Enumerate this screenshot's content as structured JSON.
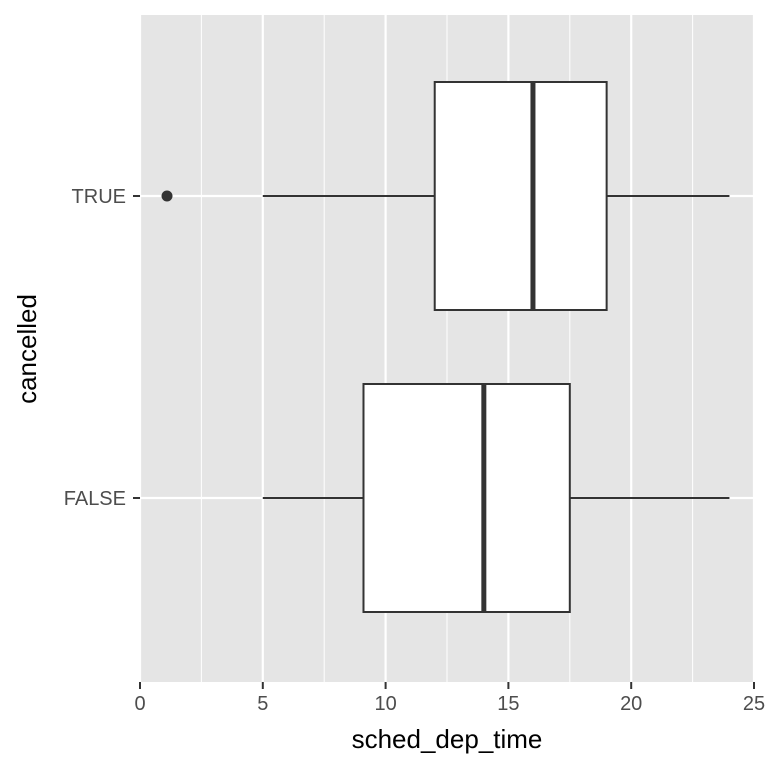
{
  "chart_data": {
    "type": "boxplot",
    "orientation": "horizontal",
    "xlabel": "sched_dep_time",
    "ylabel": "cancelled",
    "xlim": [
      0,
      25
    ],
    "x_ticks": [
      0,
      5,
      10,
      15,
      20,
      25
    ],
    "x_tick_labels": [
      "0",
      "5",
      "10",
      "15",
      "20",
      "25"
    ],
    "categories": [
      "TRUE",
      "FALSE"
    ],
    "boxes": [
      {
        "category": "TRUE",
        "whisker_low": 5.0,
        "q1": 12.0,
        "median": 16.0,
        "q3": 19.0,
        "whisker_high": 24.0,
        "outliers": [
          1.1
        ]
      },
      {
        "category": "FALSE",
        "whisker_low": 5.0,
        "q1": 9.1,
        "median": 14.0,
        "q3": 17.5,
        "whisker_high": 24.0,
        "outliers": []
      }
    ],
    "grid": true,
    "panel_background": "#e5e5e5",
    "grid_color": "#ffffff",
    "box_fill": "#ffffff",
    "line_color": "#333333"
  }
}
